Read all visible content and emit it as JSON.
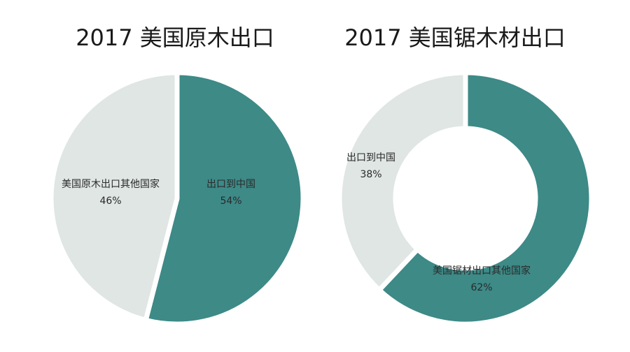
{
  "colors": {
    "teal": "#3d8a87",
    "light": "#dfe6e4",
    "gap": "#ffffff"
  },
  "chart_data": [
    {
      "type": "pie",
      "title": "2017 美国原木出口",
      "slices": [
        {
          "label": "出口到中国",
          "value": 54,
          "pct": "54%",
          "color": "teal"
        },
        {
          "label": "美国原木出口其他国家",
          "value": 46,
          "pct": "46%",
          "color": "light"
        }
      ]
    },
    {
      "type": "donut",
      "title": "2017 美国锯木材出口",
      "slices": [
        {
          "label": "美国锯材出口其他国家",
          "value": 62,
          "pct": "62%",
          "color": "teal"
        },
        {
          "label": "出口到中国",
          "value": 38,
          "pct": "38%",
          "color": "light"
        }
      ]
    }
  ]
}
